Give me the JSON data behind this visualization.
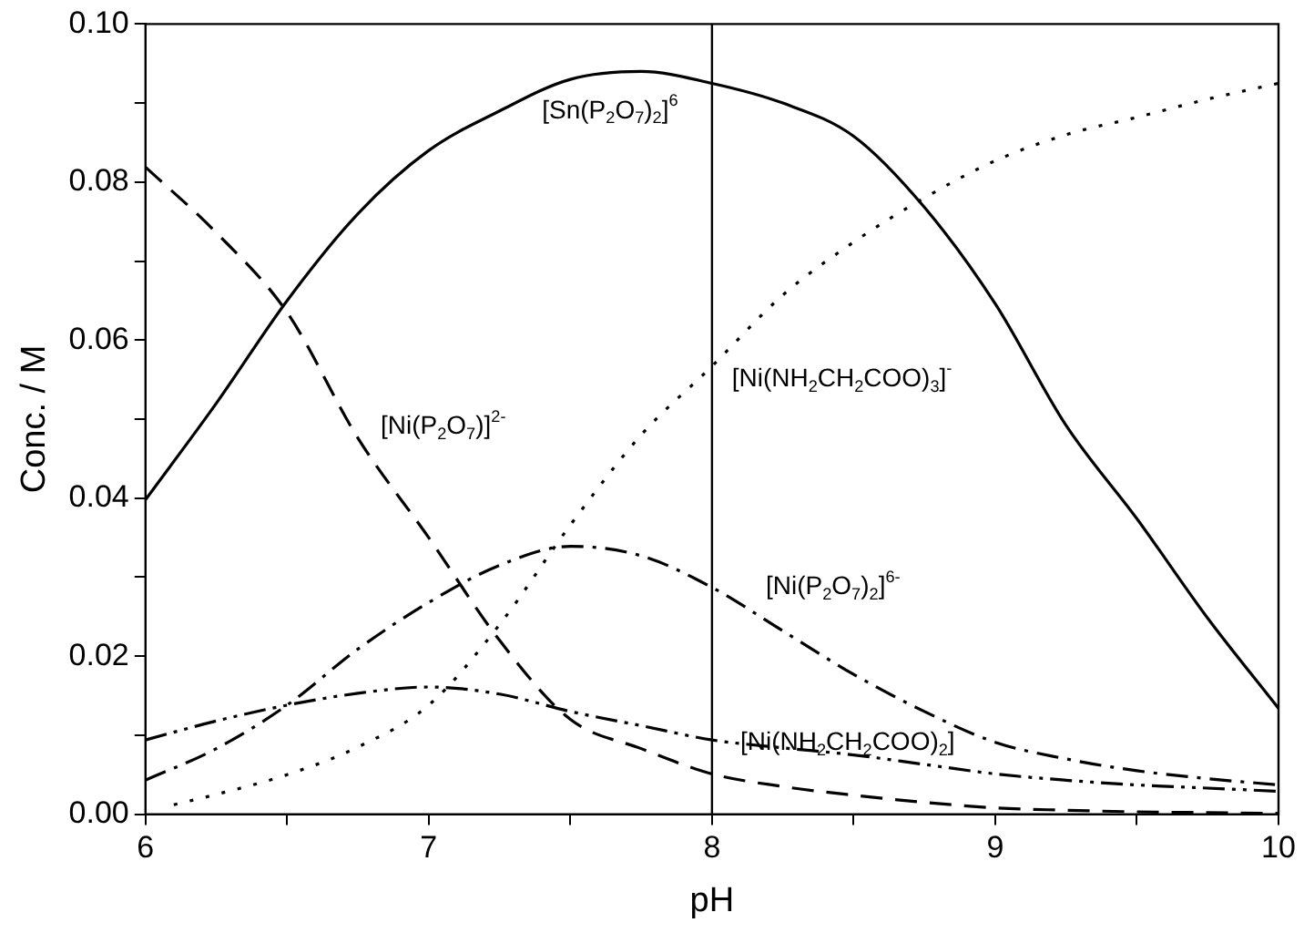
{
  "chart_data": {
    "type": "line",
    "xlabel": "pH",
    "ylabel": "Conc. / M",
    "xlim": [
      6,
      10
    ],
    "xticks": [
      6,
      {
        "value": 6.5,
        "label": null
      },
      7,
      {
        "value": 7.5,
        "label": null
      },
      8,
      {
        "value": 8.5,
        "label": null
      },
      9,
      {
        "value": 9.5,
        "label": null
      },
      10
    ],
    "ylim": [
      0,
      0.1
    ],
    "yticks": [
      {
        "value": 0,
        "label": "0.00"
      },
      {
        "value": 0.01,
        "label": null
      },
      {
        "value": 0.02,
        "label": "0.02"
      },
      {
        "value": 0.03,
        "label": null
      },
      {
        "value": 0.04,
        "label": "0.04"
      },
      {
        "value": 0.05,
        "label": null
      },
      {
        "value": 0.06,
        "label": "0.06"
      },
      {
        "value": 0.07,
        "label": null
      },
      {
        "value": 0.08,
        "label": "0.08"
      },
      {
        "value": 0.09,
        "label": null
      },
      {
        "value": 0.1,
        "label": "0.10"
      }
    ],
    "grid": false,
    "legend": false,
    "marker": "none",
    "x": [
      6,
      6.25,
      6.5,
      6.75,
      7,
      7.25,
      7.5,
      7.75,
      8,
      8.25,
      8.5,
      8.75,
      9,
      9.25,
      9.5,
      9.75,
      10
    ],
    "series": [
      {
        "name": "[Sn(P$_{2}$O$_{7}$)$_{2}$]$^{6}$",
        "color": "#000000",
        "line_style": "solid",
        "values": [
          0.0398,
          0.052,
          0.065,
          0.076,
          0.084,
          0.089,
          0.093,
          0.094,
          0.0925,
          0.09,
          0.0858,
          0.0768,
          0.0646,
          0.0492,
          0.0374,
          0.0248,
          0.0134
        ]
      },
      {
        "name": "[Ni(P$_{2}$O$_{7}$)]$^{2-}$",
        "color": "#000000",
        "line_style": "dashed",
        "values": [
          0.0819,
          0.0736,
          0.0635,
          0.0476,
          0.035,
          0.022,
          0.012,
          0.0083,
          0.0051,
          0.0035,
          0.0024,
          0.0015,
          0.0008,
          0.0005,
          0.0003,
          0.0002,
          0.0001
        ]
      },
      {
        "name": "[Ni(NH$_{2}$CH$_{2}$COO)$_{3}$]$^{-}$",
        "color": "#000000",
        "line_style": "dotted",
        "x": [
          6.1,
          6.25,
          6.5,
          6.75,
          7,
          7.25,
          7.5,
          7.75,
          8,
          8.25,
          8.5,
          8.75,
          9,
          9.25,
          9.5,
          9.75,
          10
        ],
        "values": [
          0.0012,
          0.0025,
          0.005,
          0.0085,
          0.0138,
          0.024,
          0.0366,
          0.048,
          0.0567,
          0.0657,
          0.0724,
          0.078,
          0.0827,
          0.086,
          0.0882,
          0.0905,
          0.0925
        ]
      },
      {
        "name": "[Ni(P$_{2}$O$_{7}$)$_{2}$]$^{6-}$",
        "color": "#000000",
        "line_style": "dashdot",
        "values": [
          0.0043,
          0.0083,
          0.0138,
          0.0209,
          0.0268,
          0.0315,
          0.0339,
          0.0327,
          0.0287,
          0.0232,
          0.0177,
          0.013,
          0.0091,
          0.007,
          0.0055,
          0.0045,
          0.0037
        ]
      },
      {
        "name": "[Ni(NH$_{2}$CH$_{2}$COO)$_{2}$]",
        "color": "#000000",
        "line_style": "dashdotdot",
        "values": [
          0.0094,
          0.0118,
          0.0138,
          0.0153,
          0.0161,
          0.0152,
          0.013,
          0.0112,
          0.0094,
          0.0084,
          0.0075,
          0.0063,
          0.0051,
          0.0043,
          0.0037,
          0.0033,
          0.0029
        ]
      }
    ],
    "ref_lines": [
      {
        "axis": "x",
        "value": 8,
        "color": "#000000"
      }
    ]
  }
}
